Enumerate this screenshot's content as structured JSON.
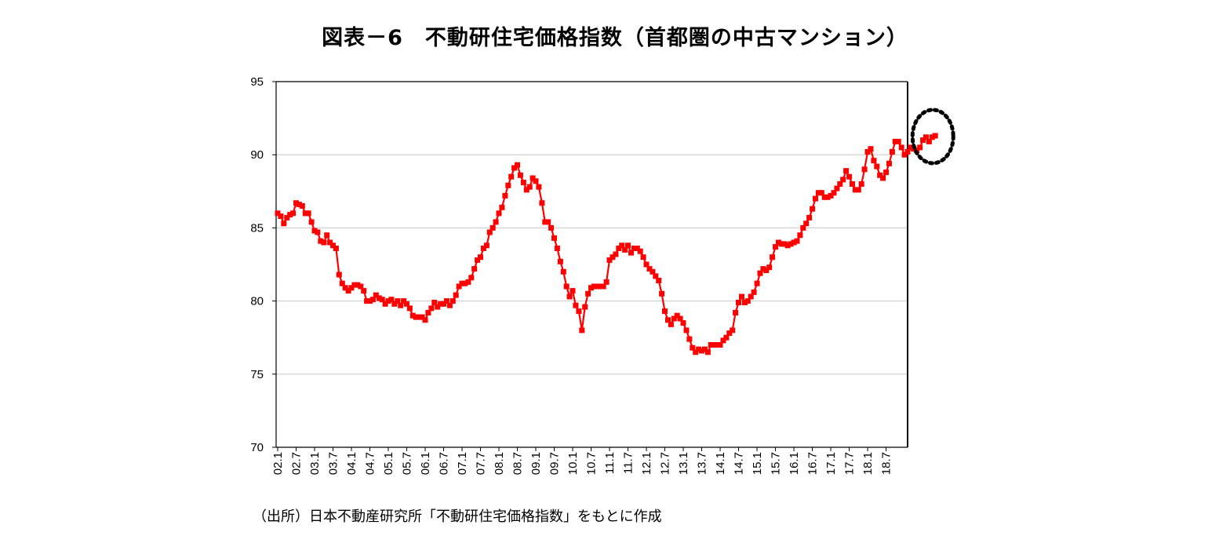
{
  "chart_data": {
    "type": "line",
    "title": "図表－6　不動研住宅価格指数（首都圏の中古マンション）",
    "source": "（出所）日本不動産研究所「不動研住宅価格指数」をもとに作成",
    "xlabel": "",
    "ylabel": "",
    "ylim": [
      70,
      95
    ],
    "yticks": [
      70,
      75,
      80,
      85,
      90,
      95
    ],
    "grid": true,
    "legend": "none",
    "x_tick_labels": [
      "02.1",
      "02.7",
      "03.1",
      "03.7",
      "04.1",
      "04.7",
      "05.1",
      "05.7",
      "06.1",
      "06.7",
      "07.1",
      "07.7",
      "08.1",
      "08.7",
      "09.1",
      "09.7",
      "10.1",
      "10.7",
      "11.1",
      "11.7",
      "12.1",
      "12.7",
      "13.1",
      "13.7",
      "14.1",
      "14.7",
      "15.1",
      "15.7",
      "16.1",
      "16.7",
      "17.1",
      "17.7",
      "18.1",
      "18.7"
    ],
    "start_month": "2002-01",
    "highlight": "last-points-dotted-circle",
    "series": [
      {
        "color": "#ff0000",
        "marker": "square",
        "values": [
          86.0,
          85.8,
          85.3,
          85.7,
          85.9,
          86.0,
          86.7,
          86.6,
          86.5,
          86.0,
          86.0,
          85.4,
          84.8,
          84.7,
          84.1,
          84.0,
          84.5,
          84.0,
          83.8,
          83.6,
          81.8,
          81.2,
          80.9,
          80.7,
          80.9,
          81.1,
          81.1,
          81.0,
          80.7,
          80.0,
          80.0,
          80.1,
          80.4,
          80.2,
          80.1,
          79.8,
          80.0,
          80.1,
          79.8,
          80.0,
          79.7,
          80.0,
          79.8,
          79.5,
          79.0,
          78.9,
          78.9,
          78.9,
          78.7,
          79.2,
          79.5,
          79.9,
          79.6,
          79.8,
          79.8,
          80.0,
          79.7,
          80.0,
          80.4,
          81.0,
          81.2,
          81.2,
          81.3,
          81.6,
          82.2,
          82.8,
          83.0,
          83.6,
          83.8,
          84.7,
          85.0,
          85.4,
          86.0,
          86.4,
          87.2,
          87.9,
          88.5,
          89.1,
          89.3,
          88.6,
          88.1,
          87.6,
          87.8,
          88.4,
          88.2,
          87.8,
          86.7,
          85.4,
          85.4,
          85.0,
          84.3,
          83.6,
          82.7,
          82.0,
          81.0,
          80.3,
          80.7,
          79.7,
          79.3,
          78.0,
          79.6,
          80.5,
          80.9,
          81.0,
          81.0,
          81.0,
          81.0,
          81.3,
          82.8,
          83.0,
          83.2,
          83.6,
          83.8,
          83.5,
          83.8,
          83.3,
          83.6,
          83.6,
          83.4,
          83.0,
          82.5,
          82.2,
          82.0,
          81.7,
          81.4,
          80.5,
          79.3,
          78.7,
          78.4,
          78.8,
          79.0,
          78.8,
          78.5,
          78.0,
          77.4,
          76.8,
          76.5,
          76.7,
          76.6,
          76.7,
          76.5,
          77.0,
          77.0,
          77.0,
          77.0,
          77.3,
          77.5,
          77.8,
          78.0,
          79.2,
          79.9,
          80.3,
          79.9,
          80.0,
          80.3,
          80.6,
          81.2,
          81.9,
          82.2,
          82.1,
          82.3,
          83.0,
          83.7,
          84.0,
          83.9,
          83.9,
          83.8,
          83.9,
          84.0,
          84.1,
          84.5,
          85.0,
          85.3,
          85.7,
          86.3,
          87.0,
          87.4,
          87.4,
          87.1,
          87.1,
          87.2,
          87.4,
          87.7,
          88.0,
          88.3,
          88.9,
          88.5,
          88.0,
          87.6,
          87.6,
          88.0,
          89.0,
          90.2,
          90.4,
          89.6,
          89.2,
          88.6,
          88.4,
          88.8,
          89.4,
          90.2,
          90.9,
          90.9,
          90.5,
          90.0,
          90.2,
          90.5,
          90.4,
          90.3,
          90.5,
          91.0,
          91.2,
          90.9,
          91.2,
          91.3
        ]
      }
    ]
  }
}
